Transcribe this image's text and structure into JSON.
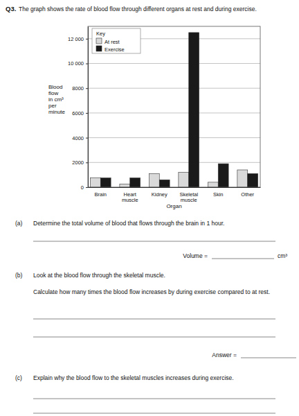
{
  "document": {
    "number": "Q3.",
    "intro": "The graph shows the rate of blood flow through different organs at rest and during exercise.",
    "parts": [
      {
        "label": "(a)",
        "lines": [
          "Determine the total volume of blood that flows through the brain in 1 hour."
        ],
        "answer_label": "Volume =",
        "unit": "cm³"
      },
      {
        "label": "(b)",
        "lines": [
          "Look at the blood flow through the skeletal muscle.",
          "Calculate how many times the blood flow increases by during exercise compared to at rest."
        ],
        "answer_label": "Answer ="
      },
      {
        "label": "(c)",
        "lines": [
          "Explain why the blood flow to the skeletal muscles increases during exercise."
        ]
      }
    ]
  },
  "chart_data": {
    "type": "bar",
    "y_label": [
      "Blood",
      "flow",
      "in cm³",
      "per",
      "minute"
    ],
    "x_label": "Organ",
    "legend_title": "Key",
    "categories": [
      "Brain",
      "Heart muscle",
      "Kidney",
      "Skeletal muscle",
      "Skin",
      "Other"
    ],
    "series": [
      {
        "name": "At rest",
        "color": "#d9d9d9",
        "values": [
          750,
          250,
          1100,
          1200,
          400,
          1400
        ]
      },
      {
        "name": "Exercise",
        "color": "#1a1a1a",
        "values": [
          750,
          750,
          600,
          12500,
          1900,
          1100
        ]
      }
    ],
    "ylim": [
      0,
      13000
    ],
    "yticks": [
      0,
      2000,
      4000,
      6000,
      8000,
      {
        "value": 10000,
        "label": "10 000"
      },
      {
        "value": 12000,
        "label": "12 000"
      }
    ],
    "grid": true,
    "legend": "upper left"
  }
}
